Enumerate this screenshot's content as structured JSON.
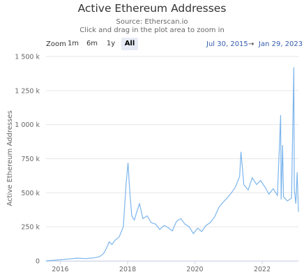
{
  "chart_data": {
    "type": "line",
    "title": "Active Ethereum Addresses",
    "subtitle": [
      "Source: Etherscan.io",
      "Click and drag in the plot area to zoom in"
    ],
    "ylabel": "Active Ethereum Addresses",
    "xlabel": "",
    "ylim": [
      0,
      1500000
    ],
    "yticks": [
      {
        "value": 0,
        "label": "0"
      },
      {
        "value": 250000,
        "label": "250 k"
      },
      {
        "value": 500000,
        "label": "500 k"
      },
      {
        "value": 750000,
        "label": "750 k"
      },
      {
        "value": 1000000,
        "label": "1 000 k"
      },
      {
        "value": 1250000,
        "label": "1 250 k"
      },
      {
        "value": 1500000,
        "label": "1 500 k"
      }
    ],
    "xlim": [
      "2015-07-30",
      "2023-01-29"
    ],
    "xticks": [
      {
        "value": "2016-01-01",
        "label": "2016"
      },
      {
        "value": "2018-01-01",
        "label": "2018"
      },
      {
        "value": "2020-01-01",
        "label": "2020"
      },
      {
        "value": "2022-01-01",
        "label": "2022"
      }
    ],
    "grid": true,
    "legend": "none",
    "series": [
      {
        "color": "#7cb5ec",
        "points": [
          [
            "2015-07-30",
            200
          ],
          [
            "2015-10-01",
            3000
          ],
          [
            "2016-01-01",
            8000
          ],
          [
            "2016-04-01",
            14000
          ],
          [
            "2016-07-01",
            20000
          ],
          [
            "2016-10-01",
            17000
          ],
          [
            "2017-01-01",
            22000
          ],
          [
            "2017-03-01",
            30000
          ],
          [
            "2017-04-15",
            55000
          ],
          [
            "2017-05-15",
            90000
          ],
          [
            "2017-06-15",
            140000
          ],
          [
            "2017-07-15",
            120000
          ],
          [
            "2017-08-15",
            150000
          ],
          [
            "2017-10-01",
            175000
          ],
          [
            "2017-11-15",
            250000
          ],
          [
            "2017-12-15",
            560000
          ],
          [
            "2018-01-05",
            720000
          ],
          [
            "2018-01-25",
            500000
          ],
          [
            "2018-02-15",
            330000
          ],
          [
            "2018-03-15",
            300000
          ],
          [
            "2018-04-15",
            370000
          ],
          [
            "2018-05-10",
            420000
          ],
          [
            "2018-06-15",
            310000
          ],
          [
            "2018-08-01",
            330000
          ],
          [
            "2018-09-15",
            280000
          ],
          [
            "2018-11-01",
            270000
          ],
          [
            "2018-12-15",
            230000
          ],
          [
            "2019-02-01",
            260000
          ],
          [
            "2019-03-15",
            245000
          ],
          [
            "2019-05-01",
            220000
          ],
          [
            "2019-06-15",
            290000
          ],
          [
            "2019-08-01",
            310000
          ],
          [
            "2019-09-15",
            270000
          ],
          [
            "2019-11-01",
            250000
          ],
          [
            "2019-12-15",
            200000
          ],
          [
            "2020-02-01",
            240000
          ],
          [
            "2020-03-15",
            215000
          ],
          [
            "2020-05-01",
            260000
          ],
          [
            "2020-06-15",
            280000
          ],
          [
            "2020-08-01",
            320000
          ],
          [
            "2020-09-15",
            390000
          ],
          [
            "2020-11-01",
            430000
          ],
          [
            "2020-12-15",
            460000
          ],
          [
            "2021-02-01",
            500000
          ],
          [
            "2021-03-15",
            540000
          ],
          [
            "2021-05-01",
            620000
          ],
          [
            "2021-05-15",
            800000
          ],
          [
            "2021-06-15",
            560000
          ],
          [
            "2021-08-01",
            520000
          ],
          [
            "2021-09-15",
            610000
          ],
          [
            "2021-11-01",
            560000
          ],
          [
            "2021-12-15",
            590000
          ],
          [
            "2022-02-01",
            540000
          ],
          [
            "2022-03-15",
            490000
          ],
          [
            "2022-05-01",
            530000
          ],
          [
            "2022-06-15",
            480000
          ],
          [
            "2022-07-20",
            1070000
          ],
          [
            "2022-07-25",
            450000
          ],
          [
            "2022-08-10",
            850000
          ],
          [
            "2022-08-20",
            470000
          ],
          [
            "2022-10-01",
            440000
          ],
          [
            "2022-11-15",
            460000
          ],
          [
            "2022-12-10",
            1420000
          ],
          [
            "2022-12-15",
            520000
          ],
          [
            "2023-01-01",
            420000
          ],
          [
            "2023-01-15",
            650000
          ],
          [
            "2023-01-29",
            360000
          ]
        ]
      }
    ]
  },
  "zoom": {
    "label": "Zoom",
    "buttons": [
      "1m",
      "6m",
      "1y",
      "All"
    ],
    "active": "All"
  },
  "range": {
    "from": "Jul 30, 2015",
    "arrow": "→",
    "to": "Jan 29, 2023"
  }
}
